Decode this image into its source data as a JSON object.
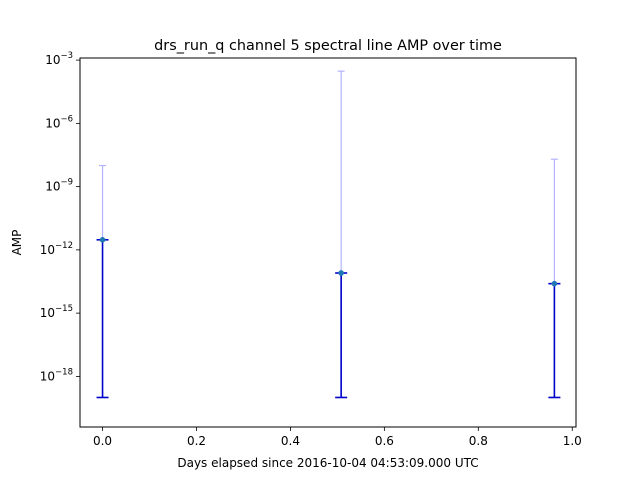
{
  "chart_data": {
    "type": "scatter",
    "title": "drs_run_q channel 5 spectral line AMP over time",
    "xlabel": "Days elapsed since 2016-10-04 04:53:09.000 UTC",
    "ylabel": "AMP",
    "x_scale": "linear",
    "y_scale": "log",
    "xlim": [
      -0.048,
      1.008
    ],
    "ylim_log10": [
      -20.4,
      -2.9
    ],
    "x_ticks": [
      0.0,
      0.2,
      0.4,
      0.6,
      0.8,
      1.0
    ],
    "x_tick_labels": [
      "0.0",
      "0.2",
      "0.4",
      "0.6",
      "0.8",
      "1.0"
    ],
    "y_ticks_log10": [
      -18,
      -15,
      -12,
      -9,
      -6,
      -3
    ],
    "y_tick_labels": [
      {
        "base": "10",
        "exp": "−18"
      },
      {
        "base": "10",
        "exp": "−15"
      },
      {
        "base": "10",
        "exp": "−12"
      },
      {
        "base": "10",
        "exp": "−9"
      },
      {
        "base": "10",
        "exp": "−6"
      },
      {
        "base": "10",
        "exp": "−3"
      }
    ],
    "grid": false,
    "points": [
      {
        "x": 0.0,
        "y": 3e-12,
        "err_low": 1e-19,
        "err_high": 3e-12,
        "upper_high": 1e-08
      },
      {
        "x": 0.508,
        "y": 8e-14,
        "err_low": 1e-19,
        "err_high": 8e-14,
        "upper_high": 0.0003
      },
      {
        "x": 0.962,
        "y": 2.5e-14,
        "err_low": 1e-19,
        "err_high": 2.5e-14,
        "upper_high": 2e-08
      }
    ],
    "colors": {
      "marker": "#1f77b4",
      "errorbar": "#0000cc",
      "upper_errorbar": "#b3b3ff"
    }
  }
}
